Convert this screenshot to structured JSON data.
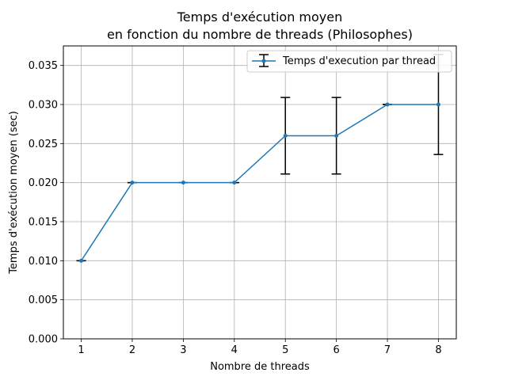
{
  "chart_data": {
    "type": "line",
    "title": "Temps d'exécution moyen\nen fonction du nombre de threads  (Philosophes)",
    "title_lines": [
      "Temps d'exécution moyen",
      "en fonction du nombre de threads  (Philosophes)"
    ],
    "xlabel": "Nombre de threads",
    "ylabel": "Temps d'exécution moyen (sec)",
    "x": [
      1,
      2,
      3,
      4,
      5,
      6,
      7,
      8
    ],
    "x_ticks": [
      "1",
      "2",
      "3",
      "4",
      "5",
      "6",
      "7",
      "8"
    ],
    "y_ticks": [
      "0.000",
      "0.005",
      "0.010",
      "0.015",
      "0.020",
      "0.025",
      "0.030",
      "0.035"
    ],
    "xlim": [
      0.65,
      8.35
    ],
    "ylim": [
      0,
      0.0375
    ],
    "grid": true,
    "legend_position": "upper right",
    "series": [
      {
        "name": "Temps d'execution par thread",
        "values": [
          0.01,
          0.02,
          0.02,
          0.02,
          0.026,
          0.026,
          0.03,
          0.03
        ],
        "errors": [
          0,
          0,
          0,
          0,
          0.0049,
          0.0049,
          0,
          0.0064
        ],
        "color": "#1f77b4",
        "errorbar_color": "#000000"
      }
    ]
  }
}
